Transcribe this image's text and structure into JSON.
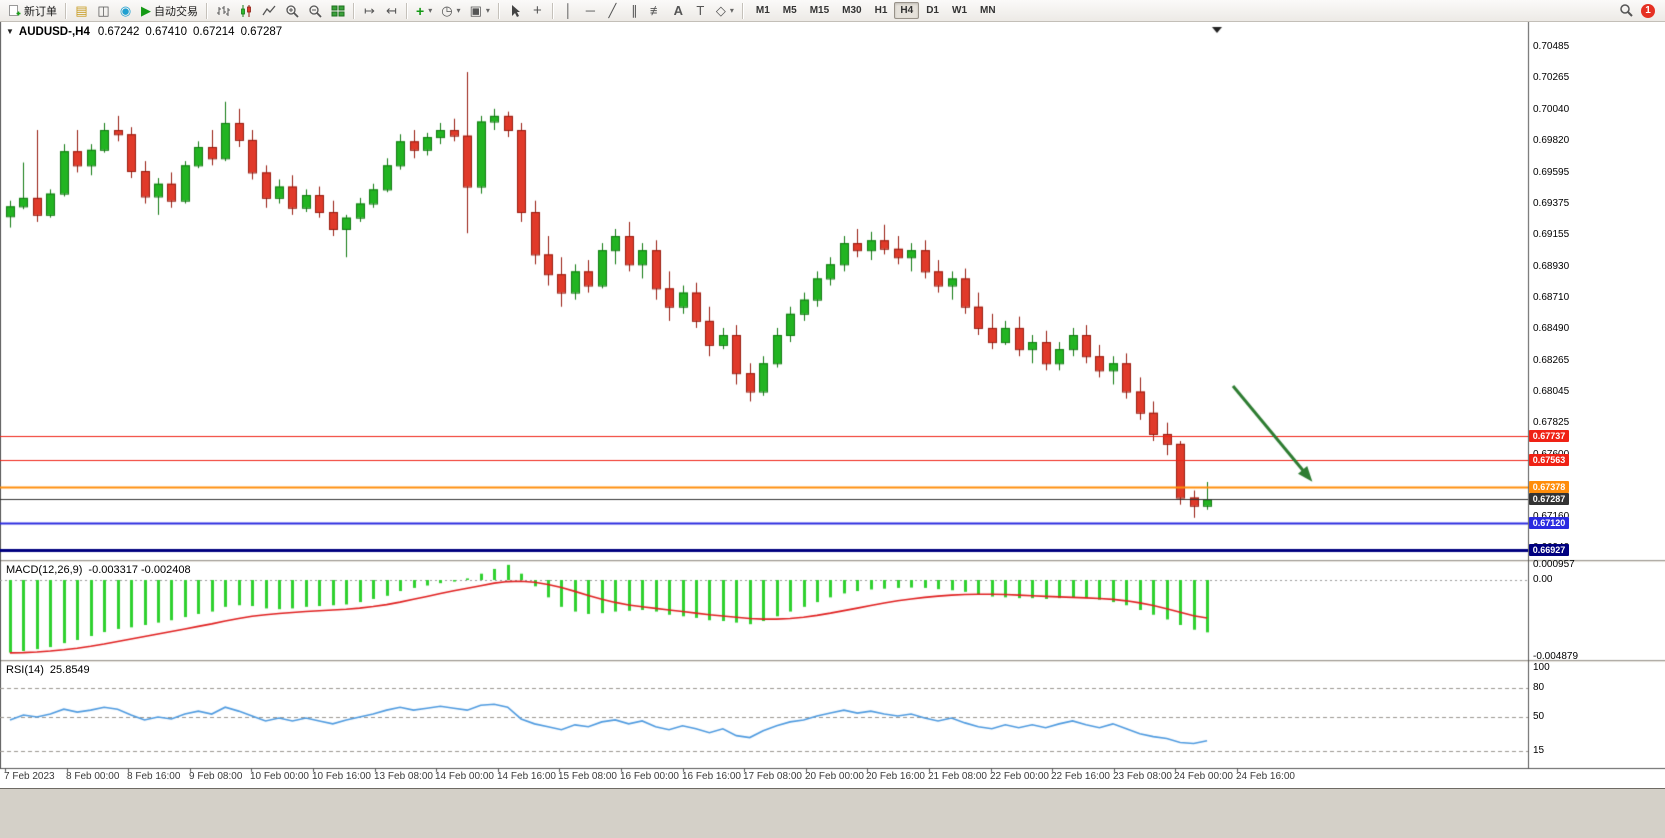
{
  "toolbar": {
    "new_order": "新订单",
    "autotrading": "自动交易",
    "timeframes": [
      "M1",
      "M5",
      "M15",
      "M30",
      "H1",
      "H4",
      "D1",
      "W1",
      "MN"
    ],
    "active_timeframe": "H4",
    "notification_count": "1",
    "icon_glyphs": {
      "menu": "▼",
      "market_watch": "▤",
      "data_window": "◫",
      "community": "◉",
      "play": "▶",
      "auto_scroll": "↦",
      "chart_shift": "↤",
      "indicators": "+",
      "periods": "◷",
      "templates": "▣",
      "crosshair": "+",
      "vline": "│",
      "hline": "─",
      "trendline": "╱",
      "channel": "∥",
      "fibonacci": "≢",
      "text": "A",
      "label": "T",
      "shapes": "◇",
      "dropdown": "▾"
    }
  },
  "chart_header": {
    "symbol_period": "AUDUSD-,H4",
    "open": "0.67242",
    "high": "0.67410",
    "low": "0.67214",
    "close": "0.67287"
  },
  "price_axis": {
    "ticks": [
      "0.70485",
      "0.70265",
      "0.70040",
      "0.69820",
      "0.69595",
      "0.69375",
      "0.69155",
      "0.68930",
      "0.68710",
      "0.68490",
      "0.68265",
      "0.68045",
      "0.67825",
      "0.67600",
      "0.67380",
      "0.67160",
      "0.66940"
    ]
  },
  "levels": [
    {
      "value": "0.67737",
      "price": 0.67737,
      "color": "#ef2215",
      "width": 1
    },
    {
      "value": "0.67563",
      "price": 0.67563,
      "color": "#ef2215",
      "width": 1
    },
    {
      "value": "0.67378",
      "price": 0.67378,
      "color": "#ff8d0a",
      "width": 2
    },
    {
      "value": "0.67287",
      "price": 0.67287,
      "color": "#333333",
      "width": 1
    },
    {
      "value": "0.67120",
      "price": 0.6712,
      "color": "#2a2ae0",
      "width": 2
    },
    {
      "value": "0.66927",
      "price": 0.66927,
      "color": "#00007f",
      "width": 3
    }
  ],
  "macd": {
    "label": "MACD(12,26,9)",
    "values": "-0.003317 -0.002408",
    "axis": [
      {
        "label": "0.000957",
        "v": 0.000957
      },
      {
        "label": "0.00",
        "v": 0
      },
      {
        "label": "-0.004879",
        "v": -0.004879
      }
    ]
  },
  "rsi": {
    "label": "RSI(14)",
    "value": "25.8549",
    "axis": [
      {
        "v": 100
      },
      {
        "v": 80
      },
      {
        "v": 50
      },
      {
        "v": 15
      }
    ],
    "dashed_levels": [
      80,
      50,
      15
    ]
  },
  "time_axis": [
    "7 Feb 2023",
    "8 Feb 00:00",
    "8 Feb 16:00",
    "9 Feb 08:00",
    "10 Feb 00:00",
    "10 Feb 16:00",
    "13 Feb 08:00",
    "14 Feb 00:00",
    "14 Feb 16:00",
    "15 Feb 08:00",
    "16 Feb 00:00",
    "16 Feb 16:00",
    "17 Feb 08:00",
    "20 Feb 00:00",
    "20 Feb 16:00",
    "21 Feb 08:00",
    "22 Feb 00:00",
    "22 Feb 16:00",
    "23 Feb 08:00",
    "24 Feb 00:00",
    "24 Feb 16:00"
  ],
  "annotations": {
    "trend_arrow_color": "#2e7d32"
  },
  "chart_data": {
    "type": "candlestick",
    "symbol": "AUDUSD",
    "period": "H4",
    "up_color": "#22b422",
    "down_color": "#e03a2a",
    "candles": [
      [
        0.6929,
        0.694,
        0.6921,
        0.6936
      ],
      [
        0.6936,
        0.6967,
        0.6934,
        0.6942
      ],
      [
        0.6942,
        0.699,
        0.6925,
        0.693
      ],
      [
        0.693,
        0.6948,
        0.6928,
        0.6945
      ],
      [
        0.6945,
        0.698,
        0.6943,
        0.6975
      ],
      [
        0.6975,
        0.699,
        0.696,
        0.6965
      ],
      [
        0.6965,
        0.698,
        0.6958,
        0.6976
      ],
      [
        0.6976,
        0.6995,
        0.6974,
        0.699
      ],
      [
        0.699,
        0.7,
        0.6982,
        0.6987
      ],
      [
        0.6987,
        0.6992,
        0.6956,
        0.6961
      ],
      [
        0.6961,
        0.6968,
        0.6938,
        0.6943
      ],
      [
        0.6943,
        0.6956,
        0.693,
        0.6952
      ],
      [
        0.6952,
        0.696,
        0.6935,
        0.694
      ],
      [
        0.694,
        0.6968,
        0.6938,
        0.6965
      ],
      [
        0.6965,
        0.6982,
        0.6963,
        0.6978
      ],
      [
        0.6978,
        0.699,
        0.6965,
        0.697
      ],
      [
        0.697,
        0.701,
        0.6968,
        0.6995
      ],
      [
        0.6995,
        0.7005,
        0.6978,
        0.6983
      ],
      [
        0.6983,
        0.699,
        0.6955,
        0.696
      ],
      [
        0.696,
        0.6965,
        0.6935,
        0.6942
      ],
      [
        0.6942,
        0.6955,
        0.6938,
        0.695
      ],
      [
        0.695,
        0.6958,
        0.693,
        0.6935
      ],
      [
        0.6935,
        0.6948,
        0.6932,
        0.6944
      ],
      [
        0.6944,
        0.695,
        0.6928,
        0.6932
      ],
      [
        0.6932,
        0.694,
        0.6915,
        0.692
      ],
      [
        0.692,
        0.693,
        0.69,
        0.6928
      ],
      [
        0.6928,
        0.6942,
        0.6925,
        0.6938
      ],
      [
        0.6938,
        0.6952,
        0.6935,
        0.6948
      ],
      [
        0.6948,
        0.697,
        0.6946,
        0.6965
      ],
      [
        0.6965,
        0.6987,
        0.6962,
        0.6982
      ],
      [
        0.6982,
        0.699,
        0.697,
        0.6976
      ],
      [
        0.6976,
        0.6988,
        0.6972,
        0.6985
      ],
      [
        0.6985,
        0.6995,
        0.698,
        0.699
      ],
      [
        0.699,
        0.6998,
        0.6982,
        0.6986
      ],
      [
        0.6986,
        0.7031,
        0.6917,
        0.695
      ],
      [
        0.695,
        0.7,
        0.6945,
        0.6996
      ],
      [
        0.6996,
        0.7005,
        0.699,
        0.7
      ],
      [
        0.7,
        0.7003,
        0.6985,
        0.699
      ],
      [
        0.699,
        0.6995,
        0.6925,
        0.6932
      ],
      [
        0.6932,
        0.694,
        0.6895,
        0.6902
      ],
      [
        0.6902,
        0.6915,
        0.688,
        0.6888
      ],
      [
        0.6888,
        0.69,
        0.6865,
        0.6875
      ],
      [
        0.6875,
        0.6895,
        0.687,
        0.689
      ],
      [
        0.689,
        0.6898,
        0.6875,
        0.688
      ],
      [
        0.688,
        0.691,
        0.6878,
        0.6905
      ],
      [
        0.6905,
        0.692,
        0.6895,
        0.6915
      ],
      [
        0.6915,
        0.6925,
        0.689,
        0.6895
      ],
      [
        0.6895,
        0.691,
        0.6885,
        0.6905
      ],
      [
        0.6905,
        0.6912,
        0.687,
        0.6878
      ],
      [
        0.6878,
        0.689,
        0.6855,
        0.6865
      ],
      [
        0.6865,
        0.688,
        0.686,
        0.6875
      ],
      [
        0.6875,
        0.6882,
        0.685,
        0.6855
      ],
      [
        0.6855,
        0.6865,
        0.683,
        0.6838
      ],
      [
        0.6838,
        0.685,
        0.6835,
        0.6845
      ],
      [
        0.6845,
        0.6852,
        0.681,
        0.6818
      ],
      [
        0.6818,
        0.6825,
        0.6798,
        0.6805
      ],
      [
        0.6805,
        0.683,
        0.6802,
        0.6825
      ],
      [
        0.6825,
        0.685,
        0.6822,
        0.6845
      ],
      [
        0.6845,
        0.6865,
        0.684,
        0.686
      ],
      [
        0.686,
        0.6875,
        0.6855,
        0.687
      ],
      [
        0.687,
        0.689,
        0.6865,
        0.6885
      ],
      [
        0.6885,
        0.69,
        0.688,
        0.6895
      ],
      [
        0.6895,
        0.6915,
        0.689,
        0.691
      ],
      [
        0.691,
        0.692,
        0.69,
        0.6905
      ],
      [
        0.6905,
        0.6918,
        0.6898,
        0.6912
      ],
      [
        0.6912,
        0.6923,
        0.6902,
        0.6906
      ],
      [
        0.6906,
        0.6915,
        0.6895,
        0.69
      ],
      [
        0.69,
        0.691,
        0.689,
        0.6905
      ],
      [
        0.6905,
        0.6912,
        0.6885,
        0.689
      ],
      [
        0.689,
        0.6898,
        0.6875,
        0.688
      ],
      [
        0.688,
        0.689,
        0.687,
        0.6885
      ],
      [
        0.6885,
        0.6892,
        0.686,
        0.6865
      ],
      [
        0.6865,
        0.6875,
        0.6845,
        0.685
      ],
      [
        0.685,
        0.686,
        0.6835,
        0.684
      ],
      [
        0.684,
        0.6855,
        0.6838,
        0.685
      ],
      [
        0.685,
        0.6858,
        0.683,
        0.6835
      ],
      [
        0.6835,
        0.6845,
        0.6825,
        0.684
      ],
      [
        0.684,
        0.6848,
        0.682,
        0.6825
      ],
      [
        0.6825,
        0.684,
        0.682,
        0.6835
      ],
      [
        0.6835,
        0.685,
        0.683,
        0.6845
      ],
      [
        0.6845,
        0.6852,
        0.6825,
        0.683
      ],
      [
        0.683,
        0.6838,
        0.6815,
        0.682
      ],
      [
        0.682,
        0.683,
        0.681,
        0.6825
      ],
      [
        0.6825,
        0.6832,
        0.68,
        0.6805
      ],
      [
        0.6805,
        0.6815,
        0.6785,
        0.679
      ],
      [
        0.679,
        0.6798,
        0.677,
        0.6775
      ],
      [
        0.6775,
        0.6783,
        0.676,
        0.6768
      ],
      [
        0.6768,
        0.677,
        0.6725,
        0.673
      ],
      [
        0.673,
        0.6735,
        0.67157,
        0.67242
      ],
      [
        0.67242,
        0.6741,
        0.67214,
        0.67287
      ]
    ],
    "macd_histogram": [
      -0.0046,
      -0.0045,
      -0.00438,
      -0.00425,
      -0.004,
      -0.0038,
      -0.00355,
      -0.0033,
      -0.0031,
      -0.003,
      -0.00285,
      -0.0027,
      -0.00255,
      -0.00235,
      -0.00215,
      -0.002,
      -0.0017,
      -0.0016,
      -0.00165,
      -0.0018,
      -0.00185,
      -0.0018,
      -0.0017,
      -0.00165,
      -0.0016,
      -0.00155,
      -0.0014,
      -0.0012,
      -0.001,
      -0.0007,
      -0.0005,
      -0.00035,
      -0.0002,
      -0.0001,
      0.0001,
      0.0004,
      0.0007,
      0.00096,
      0.0004,
      -0.0004,
      -0.0011,
      -0.0017,
      -0.002,
      -0.00215,
      -0.0021,
      -0.002,
      -0.00195,
      -0.0019,
      -0.002,
      -0.0022,
      -0.0023,
      -0.0024,
      -0.00255,
      -0.0026,
      -0.0027,
      -0.0028,
      -0.0026,
      -0.0023,
      -0.002,
      -0.0017,
      -0.0014,
      -0.0011,
      -0.00085,
      -0.0007,
      -0.0006,
      -0.00055,
      -0.0005,
      -0.00048,
      -0.0005,
      -0.00058,
      -0.00065,
      -0.00075,
      -0.0009,
      -0.00105,
      -0.0011,
      -0.00115,
      -0.00115,
      -0.0012,
      -0.00115,
      -0.0011,
      -0.00115,
      -0.00125,
      -0.0014,
      -0.0016,
      -0.0019,
      -0.0022,
      -0.0025,
      -0.00285,
      -0.00315,
      -0.003317
    ],
    "macd_signal": [
      -0.00462,
      -0.0046,
      -0.00456,
      -0.0045,
      -0.00442,
      -0.00432,
      -0.0042,
      -0.00406,
      -0.0039,
      -0.00374,
      -0.00358,
      -0.00342,
      -0.00326,
      -0.0031,
      -0.00294,
      -0.00278,
      -0.0026,
      -0.00244,
      -0.0023,
      -0.0022,
      -0.00212,
      -0.00206,
      -0.002,
      -0.00195,
      -0.0019,
      -0.00185,
      -0.00178,
      -0.00168,
      -0.00156,
      -0.0014,
      -0.00122,
      -0.00104,
      -0.00086,
      -0.00068,
      -0.00052,
      -0.00036,
      -0.0002,
      -0.0001,
      -8e-05,
      -0.00014,
      -0.00028,
      -0.00048,
      -0.00072,
      -0.00098,
      -0.00122,
      -0.00142,
      -0.00158,
      -0.0017,
      -0.0018,
      -0.0019,
      -0.002,
      -0.0021,
      -0.0022,
      -0.00228,
      -0.00236,
      -0.00244,
      -0.00248,
      -0.00248,
      -0.00244,
      -0.00236,
      -0.00224,
      -0.0021,
      -0.00194,
      -0.00178,
      -0.00162,
      -0.00146,
      -0.00132,
      -0.0012,
      -0.0011,
      -0.00102,
      -0.00096,
      -0.00092,
      -0.0009,
      -0.0009,
      -0.00092,
      -0.00096,
      -0.001,
      -0.00104,
      -0.00107,
      -0.0011,
      -0.00113,
      -0.00117,
      -0.00123,
      -0.00132,
      -0.00145,
      -0.00162,
      -0.00182,
      -0.00204,
      -0.00226,
      -0.002408
    ],
    "rsi_values": [
      47,
      52,
      50,
      53,
      58,
      55,
      57,
      60,
      58,
      52,
      47,
      50,
      48,
      53,
      56,
      53,
      60,
      56,
      51,
      46,
      49,
      46,
      49,
      46,
      43,
      47,
      50,
      53,
      57,
      60,
      57,
      59,
      61,
      59,
      57,
      62,
      63,
      60,
      48,
      43,
      40,
      37,
      42,
      40,
      45,
      47,
      43,
      46,
      40,
      37,
      41,
      38,
      34,
      38,
      31,
      29,
      36,
      41,
      45,
      47,
      51,
      54,
      57,
      54,
      56,
      53,
      51,
      53,
      49,
      46,
      49,
      44,
      40,
      38,
      42,
      39,
      42,
      39,
      43,
      46,
      42,
      39,
      43,
      38,
      33,
      30,
      28,
      24,
      23,
      25.85
    ]
  }
}
